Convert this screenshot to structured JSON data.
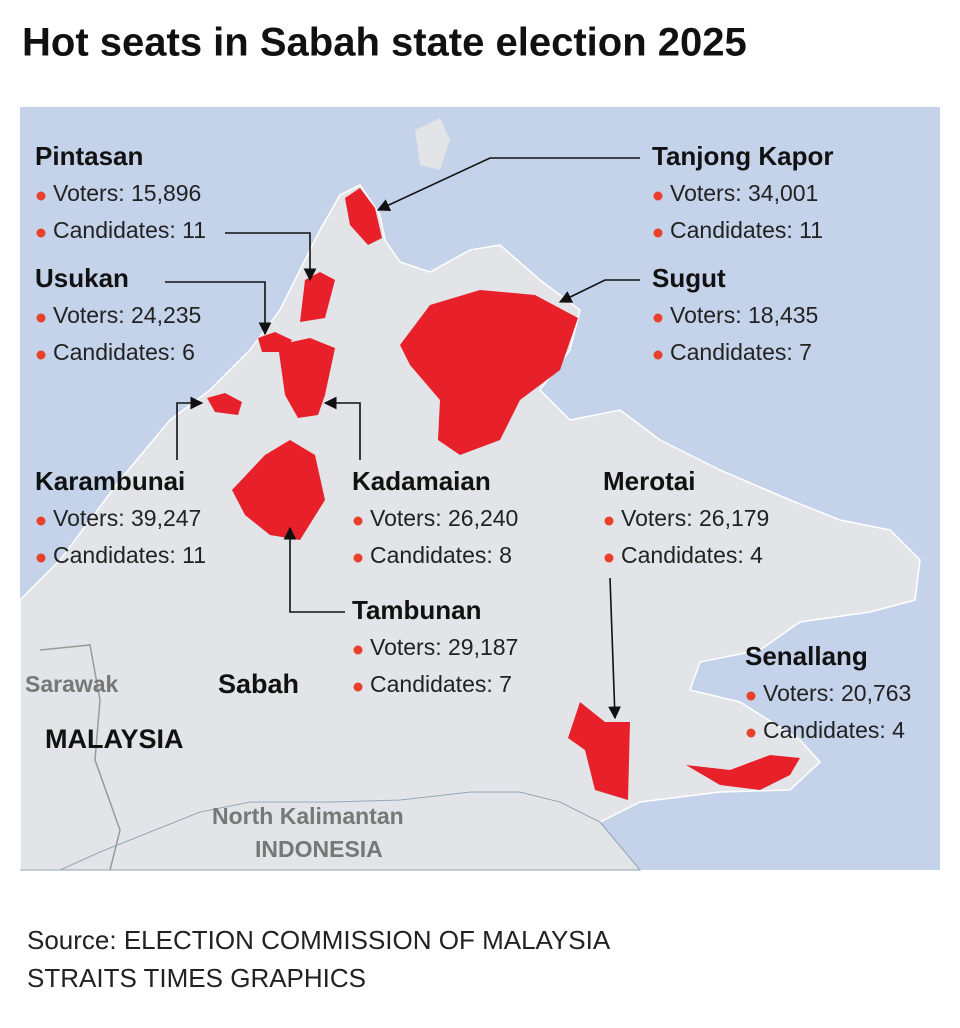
{
  "title": "Hot seats in Sabah state election 2025",
  "seats": [
    {
      "name": "Pintasan",
      "voters": "Voters: 15,896",
      "candidates": "Candidates: 11"
    },
    {
      "name": "Tanjong Kapor",
      "voters": "Voters: 34,001",
      "candidates": "Candidates: 11"
    },
    {
      "name": "Usukan",
      "voters": "Voters: 24,235",
      "candidates": "Candidates: 6"
    },
    {
      "name": "Sugut",
      "voters": "Voters: 18,435",
      "candidates": "Candidates: 7"
    },
    {
      "name": "Karambunai",
      "voters": "Voters: 39,247",
      "candidates": "Candidates: 11"
    },
    {
      "name": "Kadamaian",
      "voters": "Voters: 26,240",
      "candidates": "Candidates: 8"
    },
    {
      "name": "Merotai",
      "voters": "Voters: 26,179",
      "candidates": "Candidates: 4"
    },
    {
      "name": "Tambunan",
      "voters": "Voters: 29,187",
      "candidates": "Candidates: 7"
    },
    {
      "name": "Senallang",
      "voters": "Voters: 20,763",
      "candidates": "Candidates: 4"
    }
  ],
  "map_labels": {
    "sarawak": "Sarawak",
    "sabah": "Sabah",
    "malaysia": "MALAYSIA",
    "north_kalimantan": "North Kalimantan",
    "indonesia": "INDONESIA"
  },
  "source": [
    "Source: ELECTION COMMISSION OF MALAYSIA",
    "STRAITS TIMES GRAPHICS"
  ]
}
